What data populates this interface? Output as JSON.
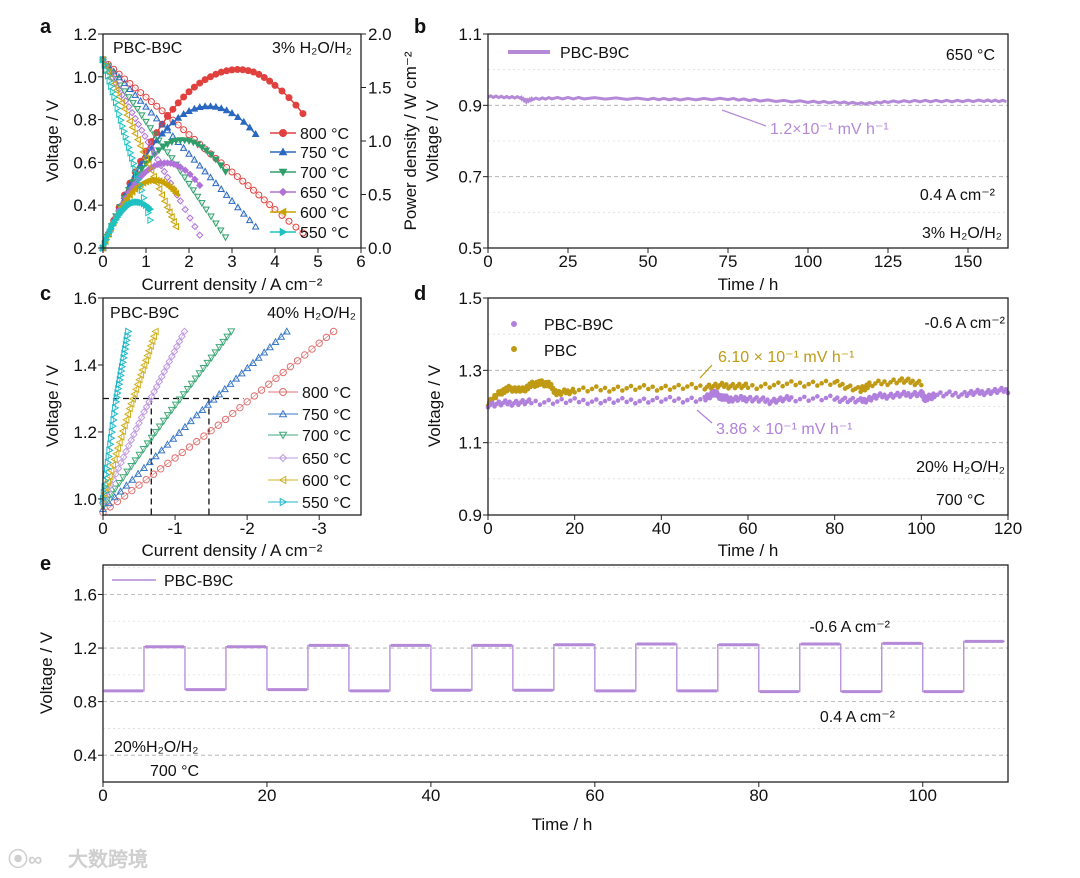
{
  "panel_labels": [
    "a",
    "b",
    "c",
    "d",
    "e"
  ],
  "watermark": "大数跨境",
  "chart_data": [
    {
      "id": "a",
      "type": "line",
      "xlabel": "Current density / A cm⁻²",
      "ylabel": "Voltage / V",
      "y2label": "Power density / W cm⁻²",
      "xlim": [
        0,
        6
      ],
      "ylim": [
        0.2,
        1.2
      ],
      "y2lim": [
        0,
        2.0
      ],
      "xticks": [
        "0",
        "1",
        "2",
        "3",
        "4",
        "5",
        "6"
      ],
      "yticks": [
        "0.2",
        "0.4",
        "0.6",
        "0.8",
        "1.0",
        "1.2"
      ],
      "y2ticks": [
        "0.0",
        "0.5",
        "1.0",
        "1.5",
        "2.0"
      ],
      "annotations": [
        "PBC-B9C",
        "3% H₂O/H₂"
      ],
      "legend_position": "right",
      "series": [
        {
          "name": "800 °C",
          "color": "#e0413f",
          "j": [
            0,
            0.5,
            1,
            1.5,
            2,
            2.5,
            3,
            3.5,
            4,
            4.65
          ],
          "v": [
            1.08,
            0.99,
            0.905,
            0.82,
            0.73,
            0.64,
            0.555,
            0.47,
            0.38,
            0.27
          ]
        },
        {
          "name": "750 °C",
          "color": "#2a68c2",
          "j": [
            0,
            0.5,
            1,
            1.5,
            2,
            2.5,
            3,
            3.55
          ],
          "v": [
            1.08,
            0.97,
            0.86,
            0.75,
            0.64,
            0.53,
            0.42,
            0.3
          ]
        },
        {
          "name": "700 °C",
          "color": "#2f9e6b",
          "j": [
            0,
            0.4,
            0.8,
            1.2,
            1.6,
            2,
            2.4,
            2.85
          ],
          "v": [
            1.08,
            0.96,
            0.85,
            0.73,
            0.62,
            0.5,
            0.38,
            0.25
          ]
        },
        {
          "name": "650 °C",
          "color": "#b072d8",
          "j": [
            0,
            0.3,
            0.6,
            0.9,
            1.2,
            1.5,
            1.8,
            2.25
          ],
          "v": [
            1.08,
            0.97,
            0.86,
            0.75,
            0.64,
            0.53,
            0.42,
            0.26
          ]
        },
        {
          "name": "600 °C",
          "color": "#c9a200",
          "j": [
            0,
            0.25,
            0.5,
            0.75,
            1,
            1.25,
            1.5,
            1.7
          ],
          "v": [
            1.08,
            0.965,
            0.85,
            0.735,
            0.62,
            0.505,
            0.39,
            0.3
          ]
        },
        {
          "name": "550 °C",
          "color": "#1fc1c1",
          "j": [
            0,
            0.15,
            0.3,
            0.45,
            0.6,
            0.75,
            0.9,
            1.1
          ],
          "v": [
            1.08,
            0.98,
            0.88,
            0.77,
            0.67,
            0.57,
            0.47,
            0.33
          ]
        }
      ]
    },
    {
      "id": "b",
      "type": "line",
      "xlabel": "Time / h",
      "ylabel": "Voltage / V",
      "xlim": [
        0,
        162.5
      ],
      "ylim": [
        0.5,
        1.1
      ],
      "xticks": [
        "0",
        "25",
        "50",
        "75",
        "100",
        "125",
        "150"
      ],
      "yticks": [
        "0.5",
        "0.7",
        "0.9",
        "1.1"
      ],
      "annotations": [
        "650 °C",
        "0.4 A cm⁻²",
        "3% H₂O/H₂",
        "1.2×10⁻¹ mV h⁻¹"
      ],
      "series": [
        {
          "name": "PBC-B9C",
          "color": "#b48ad8",
          "x": [
            0,
            5,
            10,
            12,
            14,
            20,
            30,
            50,
            60,
            75,
            85,
            100,
            110,
            118,
            125,
            135,
            145,
            155,
            162
          ],
          "y": [
            0.925,
            0.923,
            0.922,
            0.912,
            0.918,
            0.92,
            0.92,
            0.918,
            0.917,
            0.918,
            0.914,
            0.91,
            0.908,
            0.905,
            0.91,
            0.912,
            0.912,
            0.913,
            0.912
          ]
        }
      ]
    },
    {
      "id": "c",
      "type": "line",
      "xlabel": "Current density / A cm⁻²",
      "ylabel": "Voltage / V",
      "xlim": [
        0,
        -3.58
      ],
      "ylim": [
        0.952,
        1.6
      ],
      "xticks": [
        "0",
        "-1",
        "-2",
        "-3"
      ],
      "yticks": [
        "1.0",
        "1.2",
        "1.4",
        "1.6"
      ],
      "annotations": [
        "PBC-B9C",
        "40% H₂O/H₂"
      ],
      "reference_lines": {
        "voltage": 1.3,
        "currents": [
          -0.67,
          -1.47
        ]
      },
      "series": [
        {
          "name": "800 °C",
          "color": "#e07070",
          "marker": "circle",
          "j": [
            0,
            -1.6,
            -3.2
          ],
          "v": [
            0.96,
            1.22,
            1.5
          ]
        },
        {
          "name": "750 °C",
          "color": "#3a78c8",
          "marker": "triangle-up",
          "j": [
            0,
            -1.3,
            -2.55
          ],
          "v": [
            0.97,
            1.25,
            1.5
          ]
        },
        {
          "name": "700 °C",
          "color": "#3fa878",
          "marker": "triangle-down",
          "j": [
            0,
            -0.9,
            -1.78
          ],
          "v": [
            0.98,
            1.25,
            1.5
          ]
        },
        {
          "name": "650 °C",
          "color": "#c09ae0",
          "marker": "diamond",
          "j": [
            0,
            -0.57,
            -1.13
          ],
          "v": [
            0.99,
            1.26,
            1.5
          ]
        },
        {
          "name": "600 °C",
          "color": "#d0b020",
          "marker": "triangle-left",
          "j": [
            0,
            -0.37,
            -0.73
          ],
          "v": [
            1.0,
            1.27,
            1.5
          ]
        },
        {
          "name": "550 °C",
          "color": "#20b8c8",
          "marker": "triangle-right",
          "j": [
            0,
            -0.18,
            -0.35
          ],
          "v": [
            1.0,
            1.29,
            1.5
          ]
        }
      ]
    },
    {
      "id": "d",
      "type": "scatter",
      "xlabel": "Time / h",
      "ylabel": "Voltage / V",
      "xlim": [
        0,
        120
      ],
      "ylim": [
        0.9,
        1.5
      ],
      "xticks": [
        "0",
        "20",
        "40",
        "60",
        "80",
        "100",
        "120"
      ],
      "yticks": [
        "0.9",
        "1.1",
        "1.3",
        "1.5"
      ],
      "annotations": [
        "-0.6 A cm⁻²",
        "20% H₂O/H₂",
        "700 °C",
        "6.10 × 10⁻¹ mV h⁻¹",
        "3.86 × 10⁻¹ mV h⁻¹"
      ],
      "series": [
        {
          "name": "PBC-B9C",
          "color": "#b080dc",
          "x": [
            0,
            5,
            10,
            20,
            30,
            40,
            50,
            52,
            54,
            56,
            60,
            65,
            70,
            80,
            86,
            90,
            95,
            100,
            101,
            103,
            110,
            115,
            120
          ],
          "y": [
            1.205,
            1.21,
            1.212,
            1.215,
            1.215,
            1.218,
            1.22,
            1.238,
            1.225,
            1.22,
            1.222,
            1.215,
            1.222,
            1.222,
            1.215,
            1.228,
            1.232,
            1.236,
            1.22,
            1.232,
            1.235,
            1.24,
            1.245
          ]
        },
        {
          "name": "PBC",
          "color": "#c09a14",
          "x": [
            0,
            3,
            5,
            8,
            10,
            12,
            14,
            16,
            20,
            30,
            40,
            50,
            55,
            60,
            70,
            80,
            86,
            88,
            95,
            100
          ],
          "y": [
            1.21,
            1.24,
            1.25,
            1.245,
            1.26,
            1.265,
            1.262,
            1.235,
            1.245,
            1.25,
            1.252,
            1.255,
            1.258,
            1.255,
            1.262,
            1.265,
            1.245,
            1.26,
            1.272,
            1.265
          ]
        }
      ]
    },
    {
      "id": "e",
      "type": "line",
      "xlabel": "Time / h",
      "ylabel": "Voltage / V",
      "xlim": [
        0,
        110.4
      ],
      "ylim": [
        0.2,
        1.82
      ],
      "xticks": [
        "0",
        "20",
        "40",
        "60",
        "80",
        "100"
      ],
      "yticks": [
        "0.4",
        "0.8",
        "1.2",
        "1.6"
      ],
      "annotations": [
        "-0.6 A cm⁻²",
        "0.4 A cm⁻²",
        "20%H₂O/H₂",
        "700 °C"
      ],
      "series": [
        {
          "name": "PBC-B9C",
          "color": "#b48ad8",
          "segments": [
            {
              "start": 0,
              "end": 5,
              "v": 0.88
            },
            {
              "start": 5,
              "end": 10,
              "v": 1.21
            },
            {
              "start": 10,
              "end": 15,
              "v": 0.89
            },
            {
              "start": 15,
              "end": 20,
              "v": 1.21
            },
            {
              "start": 20,
              "end": 25,
              "v": 0.89
            },
            {
              "start": 25,
              "end": 30,
              "v": 1.22
            },
            {
              "start": 30,
              "end": 35,
              "v": 0.88
            },
            {
              "start": 35,
              "end": 40,
              "v": 1.22
            },
            {
              "start": 40,
              "end": 45,
              "v": 0.885
            },
            {
              "start": 45,
              "end": 50,
              "v": 1.22
            },
            {
              "start": 50,
              "end": 55,
              "v": 0.885
            },
            {
              "start": 55,
              "end": 60,
              "v": 1.225
            },
            {
              "start": 60,
              "end": 65,
              "v": 0.88
            },
            {
              "start": 65,
              "end": 70,
              "v": 1.23
            },
            {
              "start": 70,
              "end": 75,
              "v": 0.88
            },
            {
              "start": 75,
              "end": 80,
              "v": 1.225
            },
            {
              "start": 80,
              "end": 85,
              "v": 0.875
            },
            {
              "start": 85,
              "end": 90,
              "v": 1.23
            },
            {
              "start": 90,
              "end": 95,
              "v": 0.875
            },
            {
              "start": 95,
              "end": 100,
              "v": 1.235
            },
            {
              "start": 100,
              "end": 105,
              "v": 0.875
            },
            {
              "start": 105,
              "end": 110,
              "v": 1.25
            }
          ]
        }
      ]
    }
  ]
}
